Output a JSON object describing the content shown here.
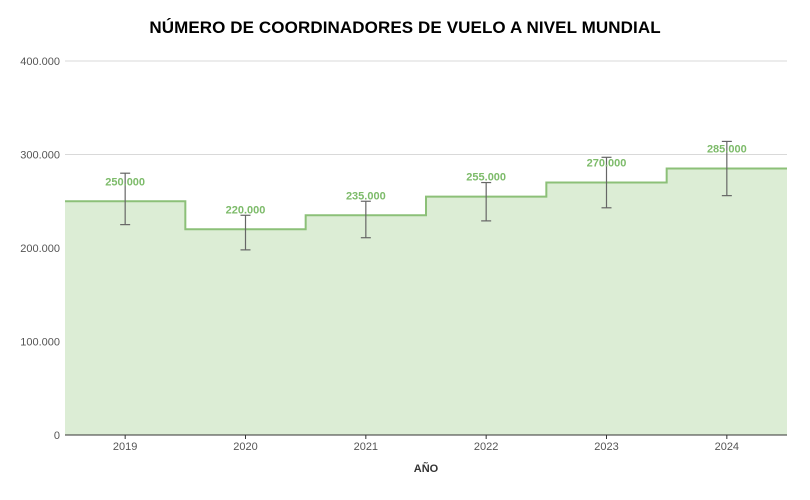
{
  "chart_data": {
    "type": "area",
    "title": "NÚMERO DE COORDINADORES DE VUELO A NIVEL MUNDIAL",
    "xlabel": "AÑO",
    "ylabel": "",
    "categories": [
      "2019",
      "2020",
      "2021",
      "2022",
      "2023",
      "2024"
    ],
    "series": [
      {
        "values": [
          250000,
          220000,
          235000,
          255000,
          270000,
          285000
        ],
        "error_low": [
          225000,
          198000,
          211000,
          229000,
          243000,
          256000
        ],
        "error_high": [
          280000,
          235000,
          250000,
          270000,
          297000,
          314000
        ],
        "data_labels": [
          "250.000",
          "220.000",
          "235.000",
          "255.000",
          "270.000",
          "285.000"
        ]
      }
    ],
    "ylim": [
      0,
      400000
    ],
    "y_ticks": [
      0,
      100000,
      200000,
      300000,
      400000
    ],
    "y_tick_labels": [
      "0",
      "100.000",
      "200.000",
      "300.000",
      "400.000"
    ],
    "step": true,
    "grid": true,
    "legend": "none",
    "colors": {
      "line": "#8cc078",
      "fill": "#dcedd5",
      "label": "#7dbb6a",
      "error_bar": "#666666",
      "grid": "#d9d9d9",
      "axis": "#333333"
    }
  }
}
